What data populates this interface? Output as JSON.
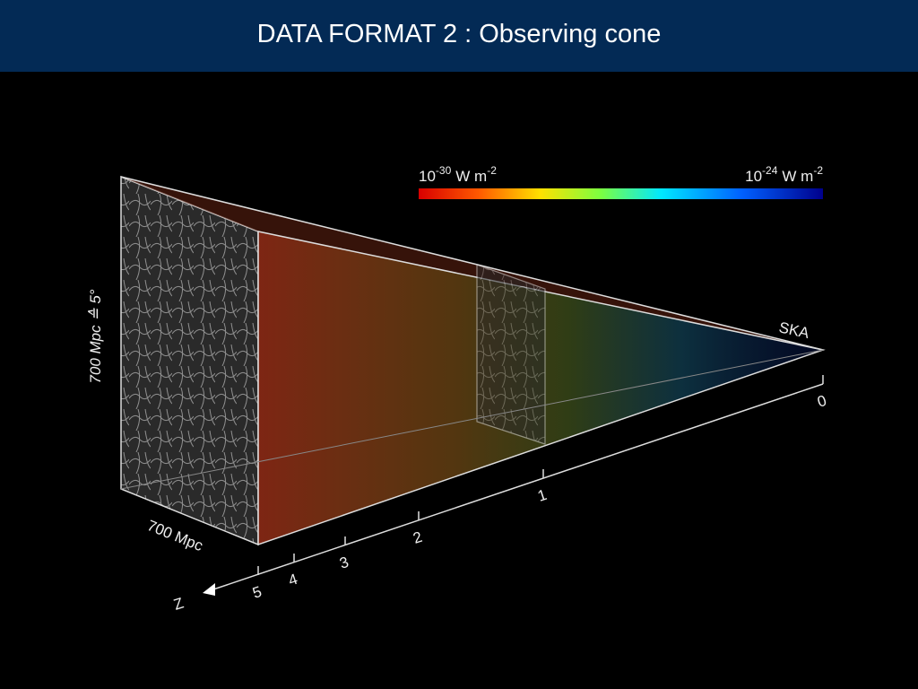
{
  "header": {
    "title": "DATA FORMAT 2 : Observing cone"
  },
  "figure": {
    "colorbar": {
      "min_label": {
        "base": "10",
        "exponent": "-30",
        "unit": "W m",
        "unit_exponent": "-2"
      },
      "max_label": {
        "base": "10",
        "exponent": "-24",
        "unit": "W m",
        "unit_exponent": "-2"
      }
    },
    "observer": "SKA",
    "side_label": "700 Mpc ≙ 5°",
    "depth_label": "700 Mpc",
    "z_axis": {
      "label": "Z",
      "ticks": [
        "0",
        "1",
        "2",
        "3",
        "4",
        "5"
      ]
    }
  }
}
